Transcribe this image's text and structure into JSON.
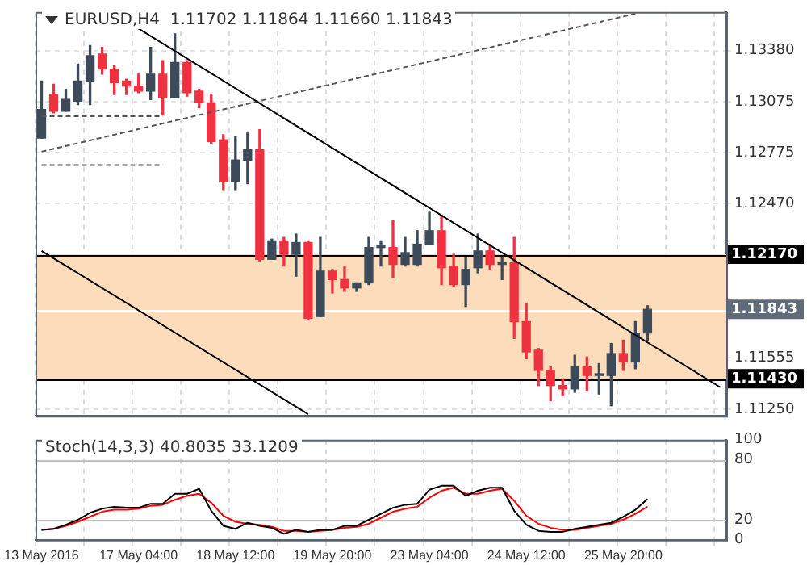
{
  "chart_data": [
    {
      "type": "candlestick",
      "title": "EURUSD,H4  1.11702 1.11864 1.11660 1.11843",
      "categories": [
        null,
        null,
        null,
        null,
        null,
        null,
        null,
        null,
        null,
        null,
        null,
        null,
        null,
        null,
        null,
        null,
        null,
        null,
        null,
        null,
        null,
        null,
        null,
        null,
        null,
        null,
        null,
        null,
        null,
        null,
        null,
        null,
        null,
        null,
        null,
        null,
        null,
        null,
        null,
        null,
        null,
        null,
        null,
        null,
        null,
        null,
        null,
        null,
        null,
        null,
        null,
        null,
        null,
        null,
        null,
        null,
        null
      ],
      "ohlc": [
        [
          1.1286,
          1.132,
          1.1286,
          1.1303
        ],
        [
          1.1312,
          1.1318,
          1.1301,
          1.1302
        ],
        [
          1.1302,
          1.1315,
          1.1302,
          1.1309
        ],
        [
          1.1308,
          1.133,
          1.1306,
          1.132
        ],
        [
          1.132,
          1.1341,
          1.1306,
          1.1335
        ],
        [
          1.1336,
          1.134,
          1.1324,
          1.1327
        ],
        [
          1.1327,
          1.1329,
          1.1312,
          1.1319
        ],
        [
          1.132,
          1.1321,
          1.1312,
          1.1317
        ],
        [
          1.1317,
          1.1324,
          1.1313,
          1.1314
        ],
        [
          1.1314,
          1.134,
          1.1309,
          1.1324
        ],
        [
          1.1324,
          1.1332,
          1.13,
          1.131
        ],
        [
          1.131,
          1.1348,
          1.131,
          1.1331
        ],
        [
          1.1331,
          1.1332,
          1.1311,
          1.1313
        ],
        [
          1.1314,
          1.1315,
          1.1304,
          1.1307
        ],
        [
          1.1307,
          1.1312,
          1.1283,
          1.1284
        ],
        [
          1.1285,
          1.1288,
          1.1255,
          1.126
        ],
        [
          1.126,
          1.1287,
          1.1255,
          1.1273
        ],
        [
          1.1273,
          1.1289,
          1.1259,
          1.1279
        ],
        [
          1.1279,
          1.1291,
          1.1213,
          1.1214
        ],
        [
          1.1214,
          1.1226,
          1.1214,
          1.1225
        ],
        [
          1.1225,
          1.1227,
          1.121,
          1.1217
        ],
        [
          1.1217,
          1.1229,
          1.1204,
          1.1224
        ],
        [
          1.1224,
          1.1225,
          1.1178,
          1.1179
        ],
        [
          1.118,
          1.1227,
          1.118,
          1.1207
        ],
        [
          1.1207,
          1.1208,
          1.1194,
          1.1202
        ],
        [
          1.1202,
          1.121,
          1.1195,
          1.1197
        ],
        [
          1.1197,
          1.12,
          1.1195,
          1.12
        ],
        [
          1.12,
          1.1227,
          1.1199,
          1.1221
        ],
        [
          1.1221,
          1.1225,
          1.121,
          1.1221
        ],
        [
          1.1221,
          1.1237,
          1.1203,
          1.1211
        ],
        [
          1.1211,
          1.1227,
          1.121,
          1.1218
        ],
        [
          1.1211,
          1.1231,
          1.121,
          1.1223
        ],
        [
          1.1223,
          1.1242,
          1.1223,
          1.1231
        ],
        [
          1.1231,
          1.124,
          1.1199,
          1.1209
        ],
        [
          1.121,
          1.1217,
          1.1198,
          1.1199
        ],
        [
          1.1199,
          1.1215,
          1.1186,
          1.1208
        ],
        [
          1.1209,
          1.1229,
          1.1206,
          1.1219
        ],
        [
          1.1219,
          1.1223,
          1.1208,
          1.1211
        ],
        [
          1.1211,
          1.1215,
          1.1202,
          1.1212
        ],
        [
          1.1212,
          1.1227,
          1.1167,
          1.1177
        ],
        [
          1.1177,
          1.1188,
          1.1155,
          1.1159
        ],
        [
          1.116,
          1.1161,
          1.1139,
          1.1148
        ],
        [
          1.1148,
          1.115,
          1.113,
          1.1139
        ],
        [
          1.1139,
          1.1143,
          1.1133,
          1.1137
        ],
        [
          1.1137,
          1.1157,
          1.1135,
          1.115
        ],
        [
          1.115,
          1.1156,
          1.1136,
          1.1145
        ],
        [
          1.1145,
          1.1152,
          1.1134,
          1.1146
        ],
        [
          1.1145,
          1.1164,
          1.1127,
          1.1158
        ],
        [
          1.1158,
          1.1166,
          1.1148,
          1.1153
        ],
        [
          1.1153,
          1.1177,
          1.1149,
          1.117
        ],
        [
          1.11702,
          1.11864,
          1.1166,
          1.11843
        ],
        null,
        null,
        null,
        null,
        null,
        null
      ],
      "colors": [
        "#3c4a5a",
        "#f03240",
        "#3c4a5a",
        "#3c4a5a",
        "#3c4a5a",
        "#f03240",
        "#f03240",
        "#f03240",
        "#f03240",
        "#3c4a5a",
        "#f03240",
        "#3c4a5a",
        "#f03240",
        "#f03240",
        "#f03240",
        "#f03240",
        "#3c4a5a",
        "#3c4a5a",
        "#f03240",
        "#3c4a5a",
        "#f03240",
        "#3c4a5a",
        "#f03240",
        "#3c4a5a",
        "#f03240",
        "#f03240",
        "#3c4a5a",
        "#3c4a5a",
        "#3c4a5a",
        "#f03240",
        "#3c4a5a",
        "#3c4a5a",
        "#3c4a5a",
        "#f03240",
        "#f03240",
        "#3c4a5a",
        "#3c4a5a",
        "#f03240",
        "#3c4a5a",
        "#f03240",
        "#f03240",
        "#f03240",
        "#f03240",
        "#f03240",
        "#3c4a5a",
        "#f03240",
        "#3c4a5a",
        "#3c4a5a",
        "#f03240",
        "#3c4a5a",
        "#3c4a5a",
        null,
        null,
        null,
        null,
        null,
        null
      ],
      "series": [
        {
          "type": "line",
          "color": "#000000",
          "line_style": "solid",
          "values": [
            null,
            null,
            null,
            null,
            null,
            null,
            1.136,
            null,
            null,
            null,
            null,
            null,
            null,
            null,
            null,
            null,
            null,
            null,
            null,
            null,
            null,
            null,
            null,
            null,
            null,
            null,
            null,
            null,
            null,
            null,
            null,
            null,
            null,
            null,
            null,
            null,
            null,
            null,
            null,
            null,
            null,
            null,
            null,
            null,
            null,
            null,
            null,
            null,
            null,
            null,
            null,
            null,
            null,
            null,
            null,
            null,
            1.1138
          ]
        },
        {
          "type": "line",
          "color": "#000000",
          "line_style": "solid",
          "values": [
            1.1219,
            null,
            null,
            null,
            null,
            null,
            null,
            null,
            null,
            null,
            null,
            null,
            null,
            null,
            null,
            null,
            null,
            null,
            null,
            null,
            null,
            null,
            1.1122,
            null,
            null,
            null,
            null,
            null,
            null,
            null,
            null,
            null,
            null,
            null,
            null,
            null,
            null,
            null,
            null,
            null,
            null,
            null,
            null,
            null,
            null,
            null,
            null,
            null,
            null,
            null,
            null,
            null,
            null,
            null,
            null,
            null,
            null
          ]
        },
        {
          "type": "line",
          "color": "#555555",
          "line_style": "dashed",
          "values": [
            1.1278,
            null,
            null,
            null,
            null,
            null,
            null,
            null,
            null,
            null,
            null,
            null,
            null,
            null,
            null,
            null,
            null,
            null,
            null,
            null,
            null,
            null,
            null,
            null,
            null,
            null,
            null,
            null,
            null,
            null,
            null,
            null,
            null,
            null,
            null,
            null,
            null,
            null,
            null,
            null,
            null,
            null,
            null,
            null,
            null,
            null,
            null,
            null,
            null,
            1.136,
            null,
            null,
            null,
            null,
            null,
            null,
            null
          ]
        },
        {
          "type": "line",
          "color": "#555555",
          "line_style": "dashed",
          "values": [
            1.1299,
            null,
            null,
            null,
            null,
            null,
            null,
            null,
            null,
            null,
            1.1299,
            null,
            null,
            null,
            null,
            null,
            null,
            null,
            null,
            null,
            null,
            null,
            null,
            null,
            null,
            null,
            null,
            null,
            null,
            null,
            null,
            null,
            null,
            null,
            null,
            null,
            null,
            null,
            null,
            null,
            null,
            null,
            null,
            null,
            null,
            null,
            null,
            null,
            null,
            null,
            null,
            null,
            null,
            null,
            null,
            null,
            null
          ]
        },
        {
          "type": "line",
          "color": "#555555",
          "line_style": "dashed",
          "values": [
            1.127,
            null,
            null,
            null,
            null,
            null,
            null,
            null,
            null,
            null,
            1.127,
            null,
            null,
            null,
            null,
            null,
            null,
            null,
            null,
            null,
            null,
            null,
            null,
            null,
            null,
            null,
            null,
            null,
            null,
            null,
            null,
            null,
            null,
            null,
            null,
            null,
            null,
            null,
            null,
            null,
            null,
            null,
            null,
            null,
            null,
            null,
            null,
            null,
            null,
            null,
            null,
            null,
            null,
            null,
            null,
            null,
            null
          ]
        }
      ],
      "ylim": [
        1.1121,
        1.1361
      ],
      "yticks": [
        {
          "value": 1.1125,
          "label": "1.11250"
        },
        {
          "value": 1.11555,
          "label": "1.11555"
        },
        {
          "value": 1.1247,
          "label": "1.12470"
        },
        {
          "value": 1.12775,
          "label": "1.12775"
        },
        {
          "value": 1.13075,
          "label": "1.13075"
        },
        {
          "value": 1.1338,
          "label": "1.13380"
        }
      ],
      "ref_lines": [
        {
          "axis": "y",
          "value": 1.1217,
          "label": "1.12170",
          "color": "#000000"
        },
        {
          "axis": "y",
          "value": 1.11843,
          "label": "1.11843",
          "color": "#ffffff"
        },
        {
          "axis": "y",
          "value": 1.1143,
          "label": "1.11430",
          "color": "#000000"
        }
      ],
      "bands": [
        {
          "axis": "y",
          "from": 1.1143,
          "to": 1.1217,
          "color": "#fddcbb"
        }
      ],
      "grid": true,
      "legend": false,
      "tick_labels": "y"
    },
    {
      "type": "line",
      "title": "Stoch(14,3,3) 40.8035 33.1209",
      "categories": [
        "13 May 2016",
        null,
        null,
        null,
        null,
        null,
        null,
        null,
        "17 May 04:00",
        null,
        null,
        null,
        null,
        null,
        null,
        null,
        "18 May 12:00",
        null,
        null,
        null,
        null,
        null,
        null,
        null,
        "19 May 20:00",
        null,
        null,
        null,
        null,
        null,
        null,
        null,
        "23 May 04:00",
        null,
        null,
        null,
        null,
        null,
        null,
        null,
        "24 May 12:00",
        null,
        null,
        null,
        null,
        null,
        null,
        null,
        "25 May 20:00",
        null,
        null,
        null,
        null,
        null,
        null,
        null,
        null
      ],
      "series": [
        {
          "color": "#000000",
          "values": [
            10,
            11,
            15,
            20,
            27,
            31,
            33,
            32,
            32,
            36,
            36,
            46,
            46,
            51,
            29,
            14,
            11,
            17,
            14,
            12,
            6,
            10,
            8,
            10,
            10,
            14,
            14,
            20,
            26,
            32,
            35,
            36,
            50,
            54,
            54,
            44,
            49,
            52,
            52,
            29,
            15,
            9,
            8,
            8,
            11,
            13,
            15,
            17,
            23,
            30,
            40.8,
            null,
            null,
            null,
            null,
            null,
            null
          ]
        },
        {
          "color": "#ff0000",
          "values": [
            10,
            11,
            14,
            18,
            23,
            28,
            30,
            30,
            31,
            34,
            35,
            40,
            44,
            46,
            37,
            24,
            18,
            16,
            15,
            13,
            9,
            9,
            8,
            9,
            10,
            12,
            13,
            16,
            22,
            28,
            31,
            33,
            42,
            49,
            52,
            46,
            46,
            49,
            51,
            39,
            24,
            16,
            12,
            10,
            10,
            12,
            14,
            16,
            20,
            26,
            33.1,
            null,
            null,
            null,
            null,
            null,
            null
          ]
        }
      ],
      "ylim": [
        0,
        100
      ],
      "yticks": [
        0,
        20,
        80,
        100
      ],
      "ref_lines": [
        {
          "axis": "y",
          "value": 20,
          "color": "#c0c0c0"
        },
        {
          "axis": "y",
          "value": 80,
          "color": "#c0c0c0"
        }
      ],
      "grid": "x",
      "legend": false,
      "marker": "none"
    }
  ]
}
